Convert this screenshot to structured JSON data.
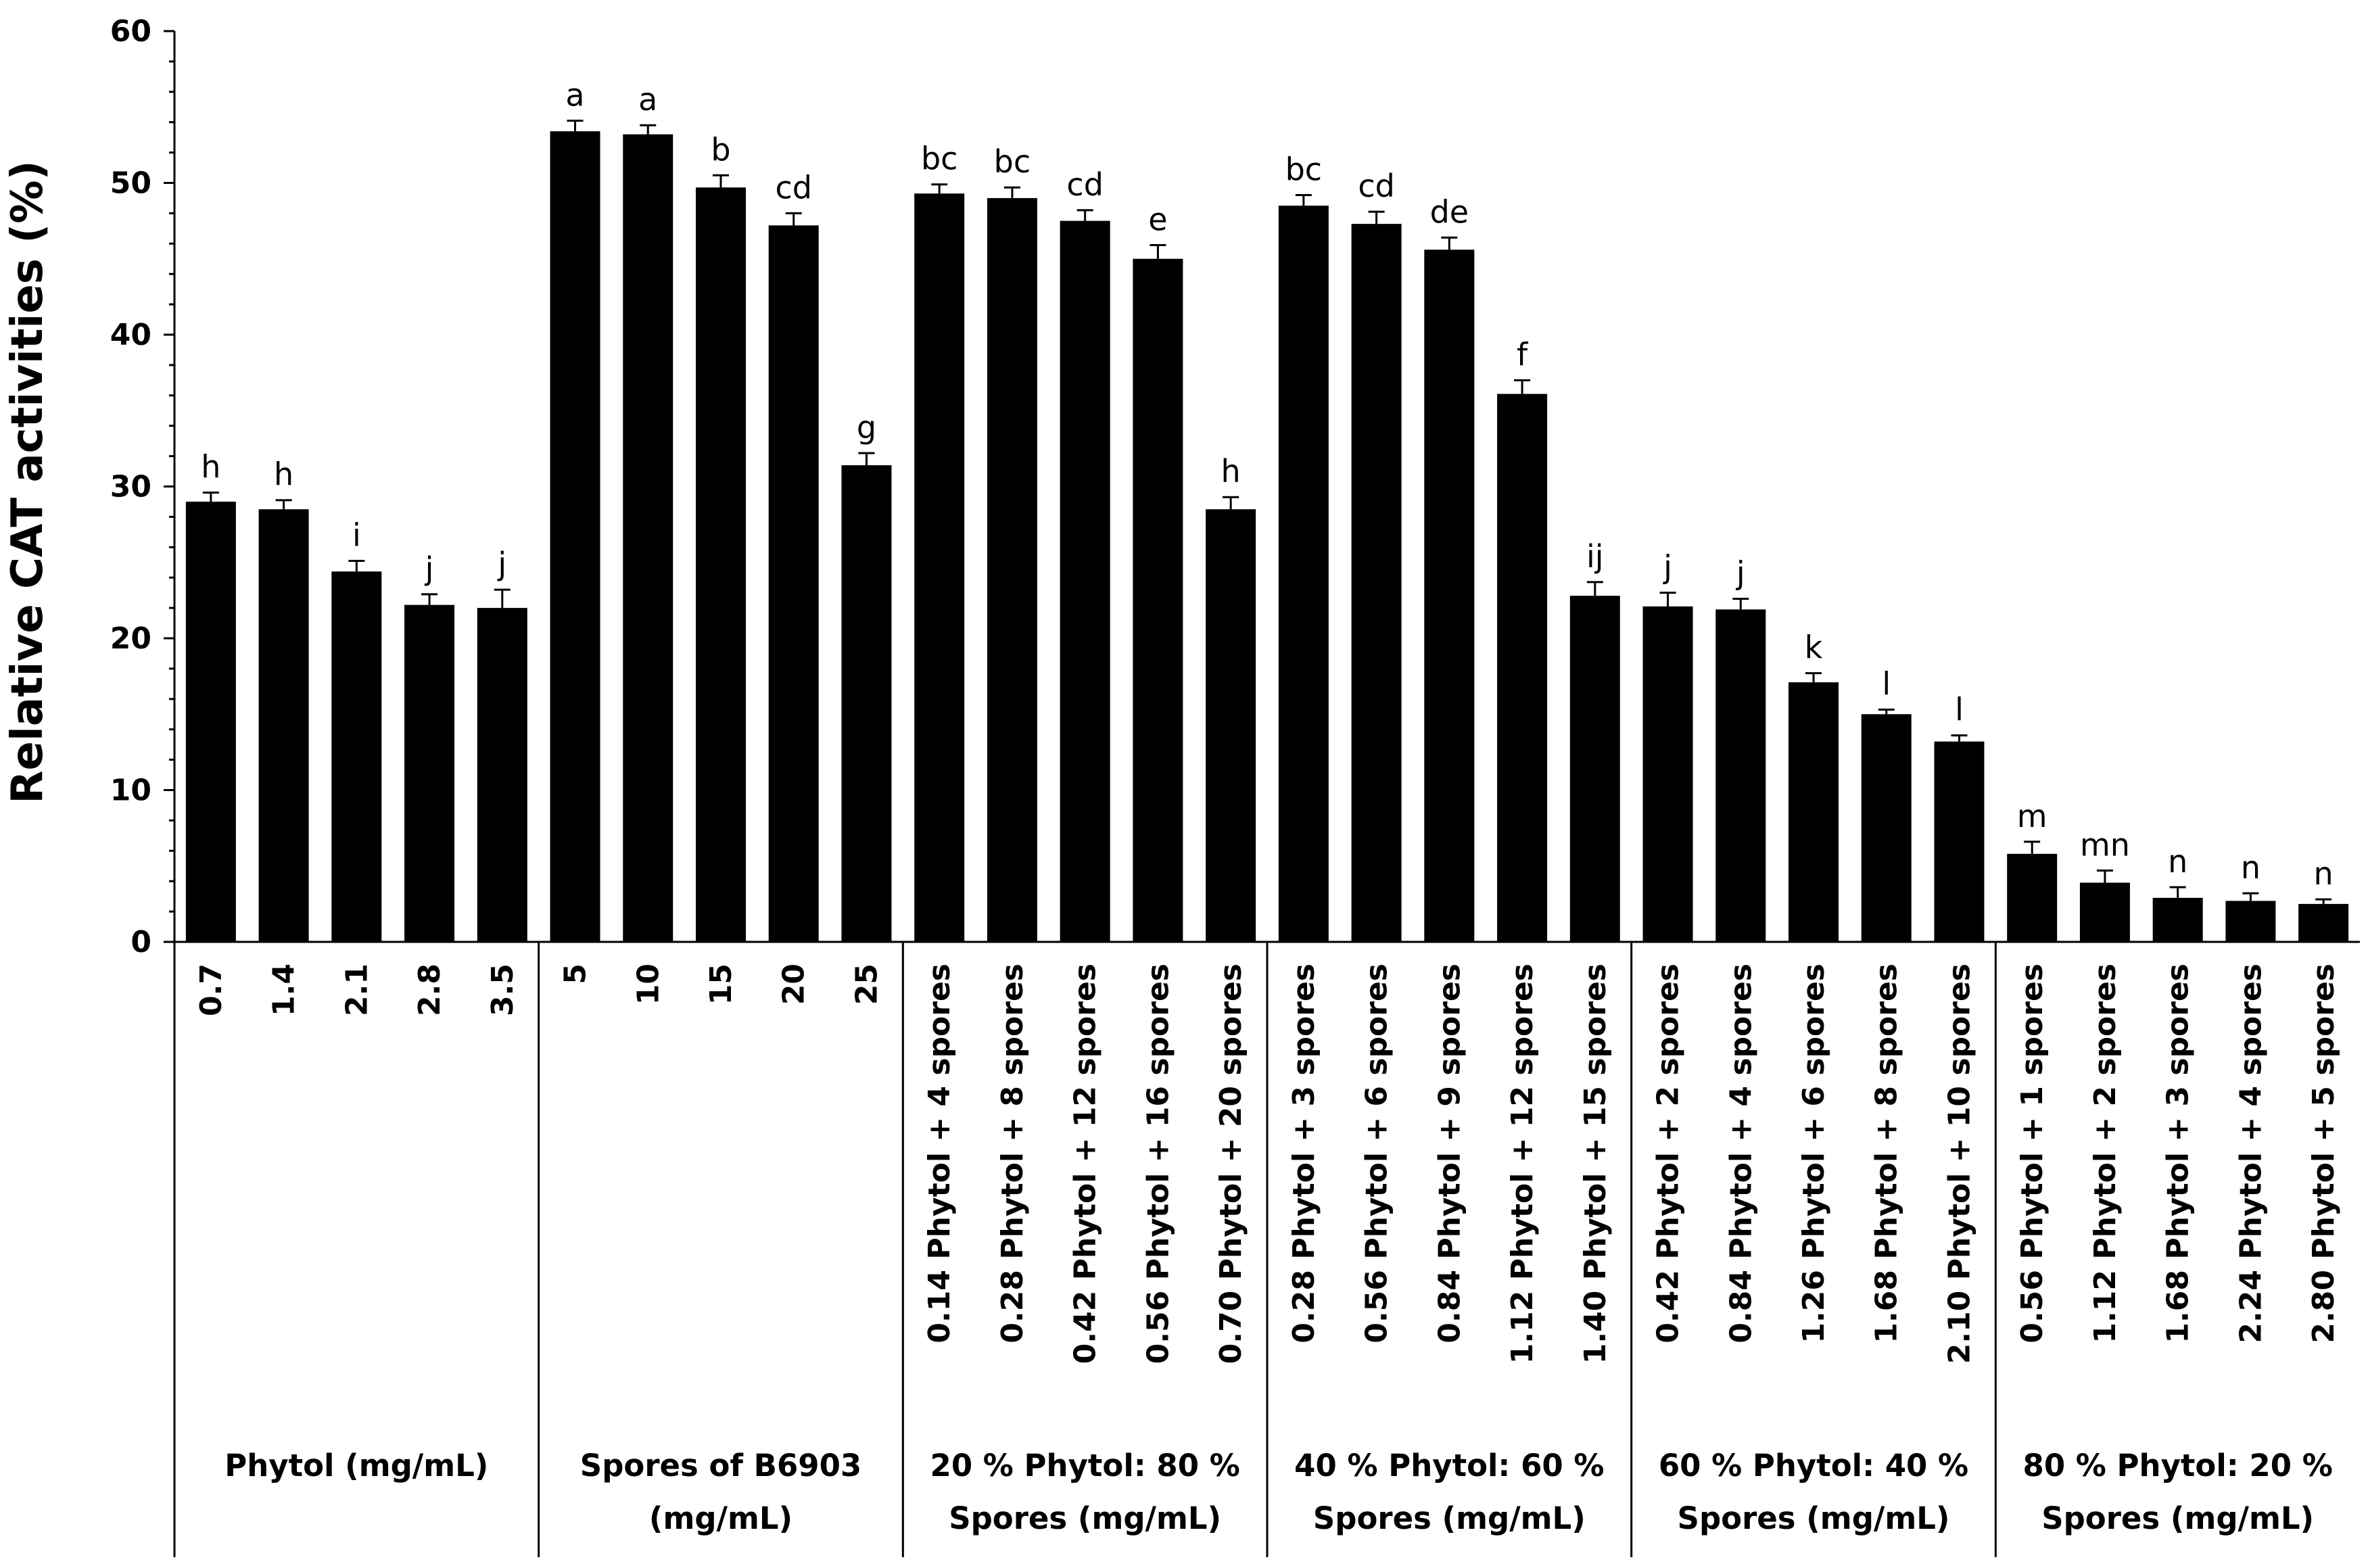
{
  "chart_data": {
    "type": "bar",
    "title": "",
    "xlabel": "",
    "ylabel": "Relative CAT activities (%)",
    "ylim": [
      0,
      60
    ],
    "yticks": [
      0,
      10,
      20,
      30,
      40,
      50,
      60
    ],
    "grid": false,
    "legend": "none",
    "bar_color": "#000000",
    "groups": [
      {
        "label": [
          "Phytol (mg/mL)"
        ],
        "bars": [
          {
            "category": "0.7",
            "value": 29.0,
            "error": 0.6,
            "letter": "h"
          },
          {
            "category": "1.4",
            "value": 28.5,
            "error": 0.6,
            "letter": "h"
          },
          {
            "category": "2.1",
            "value": 24.4,
            "error": 0.7,
            "letter": "i"
          },
          {
            "category": "2.8",
            "value": 22.2,
            "error": 0.7,
            "letter": "j"
          },
          {
            "category": "3.5",
            "value": 22.0,
            "error": 1.2,
            "letter": "j"
          }
        ]
      },
      {
        "label": [
          "Spores of B6903",
          "(mg/mL)"
        ],
        "bars": [
          {
            "category": "5",
            "value": 53.4,
            "error": 0.7,
            "letter": "a"
          },
          {
            "category": "10",
            "value": 53.2,
            "error": 0.6,
            "letter": "a"
          },
          {
            "category": "15",
            "value": 49.7,
            "error": 0.8,
            "letter": "b"
          },
          {
            "category": "20",
            "value": 47.2,
            "error": 0.8,
            "letter": "cd"
          },
          {
            "category": "25",
            "value": 31.4,
            "error": 0.8,
            "letter": "g"
          }
        ]
      },
      {
        "label": [
          "20 % Phytol: 80 %",
          "Spores (mg/mL)"
        ],
        "bars": [
          {
            "category": "0.14 Phytol + 4 spores",
            "value": 49.3,
            "error": 0.6,
            "letter": "bc"
          },
          {
            "category": "0.28 Phytol + 8 spores",
            "value": 49.0,
            "error": 0.7,
            "letter": "bc"
          },
          {
            "category": "0.42 Phytol + 12 spores",
            "value": 47.5,
            "error": 0.7,
            "letter": "cd"
          },
          {
            "category": "0.56 Phytol + 16 spores",
            "value": 45.0,
            "error": 0.9,
            "letter": "e"
          },
          {
            "category": "0.70 Phytol + 20 spores",
            "value": 28.5,
            "error": 0.8,
            "letter": "h"
          }
        ]
      },
      {
        "label": [
          "40 % Phytol: 60 %",
          "Spores (mg/mL)"
        ],
        "bars": [
          {
            "category": "0.28 Phytol + 3 spores",
            "value": 48.5,
            "error": 0.7,
            "letter": "bc"
          },
          {
            "category": "0.56 Phytol + 6 spores",
            "value": 47.3,
            "error": 0.8,
            "letter": "cd"
          },
          {
            "category": "0.84 Phytol + 9 spores",
            "value": 45.6,
            "error": 0.8,
            "letter": "de"
          },
          {
            "category": "1.12 Phytol + 12 spores",
            "value": 36.1,
            "error": 0.9,
            "letter": "f"
          },
          {
            "category": "1.40 Phytol + 15 spores",
            "value": 22.8,
            "error": 0.9,
            "letter": "ij"
          }
        ]
      },
      {
        "label": [
          "60 % Phytol: 40 %",
          "Spores (mg/mL)"
        ],
        "bars": [
          {
            "category": "0.42 Phytol + 2 spores",
            "value": 22.1,
            "error": 0.9,
            "letter": "j"
          },
          {
            "category": "0.84 Phytol + 4 spores",
            "value": 21.9,
            "error": 0.7,
            "letter": "j"
          },
          {
            "category": "1.26 Phytol + 6 spores",
            "value": 17.1,
            "error": 0.6,
            "letter": "k"
          },
          {
            "category": "1.68 Phytol + 8 spores",
            "value": 15.0,
            "error": 0.3,
            "letter": "l"
          },
          {
            "category": "2.10 Phytol + 10 spores",
            "value": 13.2,
            "error": 0.4,
            "letter": "l"
          }
        ]
      },
      {
        "label": [
          "80 % Phytol: 20 %",
          "Spores (mg/mL)"
        ],
        "bars": [
          {
            "category": "0.56 Phytol + 1 spores",
            "value": 5.8,
            "error": 0.8,
            "letter": "m"
          },
          {
            "category": "1.12 Phytol + 2 spores",
            "value": 3.9,
            "error": 0.8,
            "letter": "mn"
          },
          {
            "category": "1.68 Phytol + 3 spores",
            "value": 2.9,
            "error": 0.7,
            "letter": "n"
          },
          {
            "category": "2.24 Phytol + 4 spores",
            "value": 2.7,
            "error": 0.5,
            "letter": "n"
          },
          {
            "category": "2.80 Phytol + 5 spores",
            "value": 2.5,
            "error": 0.3,
            "letter": "n"
          }
        ]
      }
    ]
  }
}
